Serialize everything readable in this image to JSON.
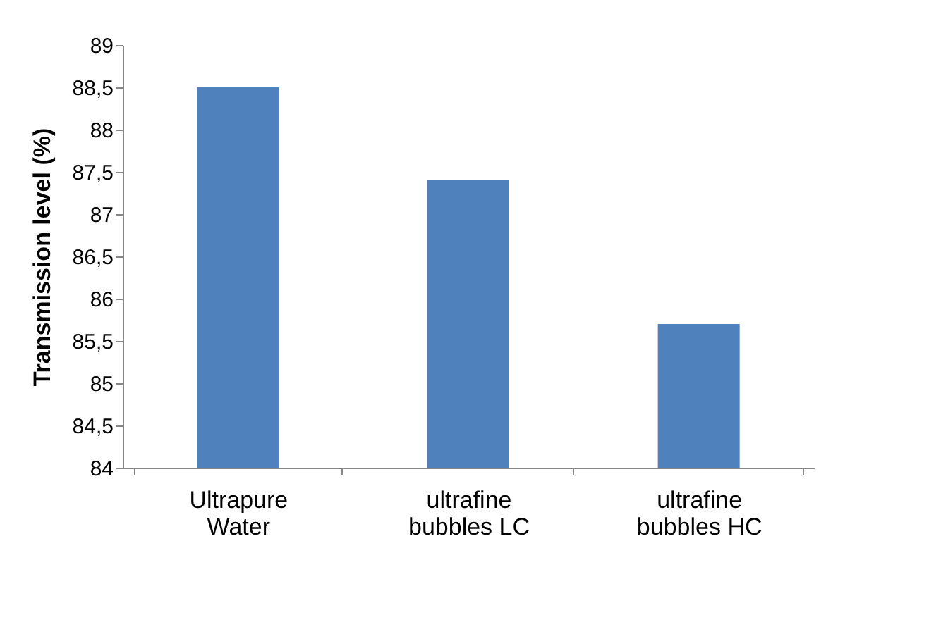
{
  "chart_data": {
    "type": "bar",
    "ylabel": "Transmission level (%)",
    "categories": [
      "Ultrapure Water",
      "ultrafine bubbles LC",
      "ultrafine bubbles HC"
    ],
    "values": [
      88.5,
      87.4,
      85.7
    ],
    "color": "#4f81bd",
    "ylim": [
      84,
      89
    ],
    "yticks": [
      84,
      {
        "value": 84.5,
        "label": "84,5"
      },
      85,
      {
        "value": 85.5,
        "label": "85,5"
      },
      86,
      {
        "value": 86.5,
        "label": "86,5"
      },
      87,
      {
        "value": 87.5,
        "label": "87,5"
      },
      88,
      {
        "value": 88.5,
        "label": "88,5"
      },
      89
    ],
    "grid": false
  }
}
